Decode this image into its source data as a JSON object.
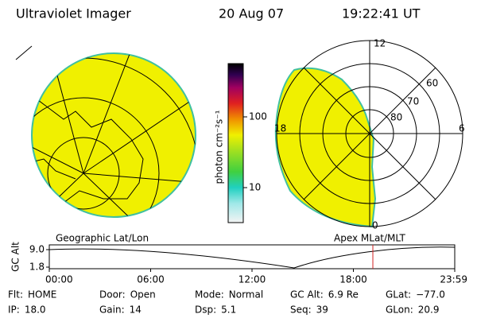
{
  "header": {
    "title": "Ultraviolet Imager",
    "date": "20 Aug 07",
    "time": "19:22:41 UT"
  },
  "colorbar": {
    "label": "photon cm⁻²s⁻¹",
    "scale": "log",
    "ticks": [
      10,
      100
    ]
  },
  "geo_map": {
    "label": "Geographic Lat/Lon"
  },
  "polar_map": {
    "label": "Apex MLat/MLT",
    "mlt_labels": [
      "12",
      "18",
      "6",
      "0"
    ],
    "lat_labels": [
      "60",
      "70",
      "80"
    ]
  },
  "altitude_plot": {
    "y_label": "GC Alt",
    "ylim": [
      1.8,
      9.0
    ],
    "yticks": [
      {
        "value": 9.0,
        "label": "9.0"
      },
      {
        "value": 1.8,
        "label": "1.8"
      }
    ],
    "xticks": [
      "00:00",
      "06:00",
      "12:00",
      "18:00",
      "23:59"
    ]
  },
  "status": [
    [
      {
        "label": "Flt:",
        "value": "HOME"
      },
      {
        "label": "Door:",
        "value": "Open"
      },
      {
        "label": "Mode:",
        "value": "Normal"
      },
      {
        "label": "GC Alt:",
        "value": "6.9 Re"
      },
      {
        "label": "GLat:",
        "value": "−77.0"
      }
    ],
    [
      {
        "label": "IP:",
        "value": "18.0"
      },
      {
        "label": "Gain:",
        "value": "14"
      },
      {
        "label": "Dsp:",
        "value": "5.1"
      },
      {
        "label": "Seq:",
        "value": "39"
      },
      {
        "label": "GLon:",
        "value": "20.9"
      }
    ]
  ]
}
